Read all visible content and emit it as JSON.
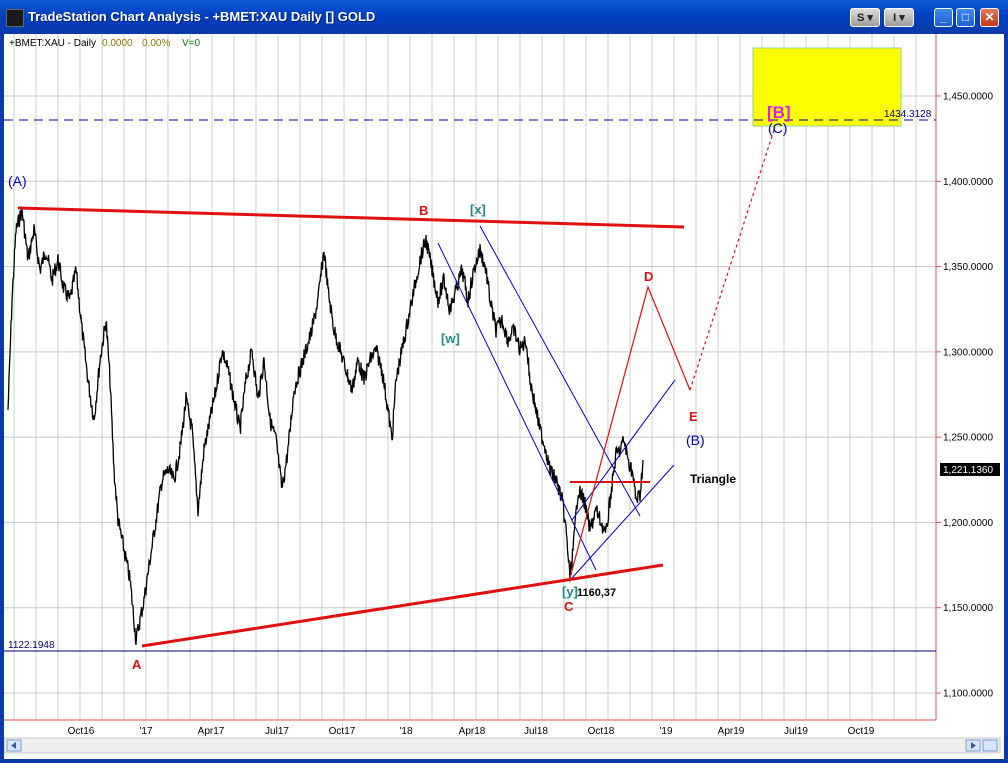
{
  "window": {
    "title": "TradeStation Chart Analysis - +BMET:XAU Daily [] GOLD",
    "btn_s": "S ▾",
    "btn_i": "I ▾",
    "min": "_",
    "max": "□",
    "close": "✕"
  },
  "info": {
    "symbol": "+BMET:XAU - Daily",
    "val1": "0.0000",
    "val2": "0.00%",
    "vol": "V=0"
  },
  "colors": {
    "red": "#e01010",
    "blue": "#0000cc",
    "teal": "#1a8a8a",
    "magenta": "#e020e0",
    "yellow": "#ffff00",
    "grid": "#c0c0c0",
    "price": "#000000"
  },
  "axis": {
    "y_ticks": [
      "1,450.0000",
      "1,400.0000",
      "1,350.0000",
      "1,300.0000",
      "1,250.0000",
      "1,200.0000",
      "1,150.0000",
      "1,100.0000"
    ],
    "x_ticks": [
      "Oct16",
      "'17",
      "Apr17",
      "Jul17",
      "Oct17",
      "'18",
      "Apr18",
      "Jul18",
      "Oct18",
      "'19",
      "Apr19",
      "Jul19",
      "Oct19"
    ],
    "last_price": "1,221.1360",
    "dashed_level": "1434.3128",
    "hline_level": "1122.1948"
  },
  "labels": {
    "A_big": "(A)",
    "A": "A",
    "B": "B",
    "x": "[x]",
    "w": "[w]",
    "y": "[y]",
    "low": "1160,37",
    "C": "C",
    "D": "D",
    "E": "E",
    "B_big": "(B)",
    "triangle": "Triangle",
    "B_bracket": "[B]",
    "C_big": "(C)"
  }
}
